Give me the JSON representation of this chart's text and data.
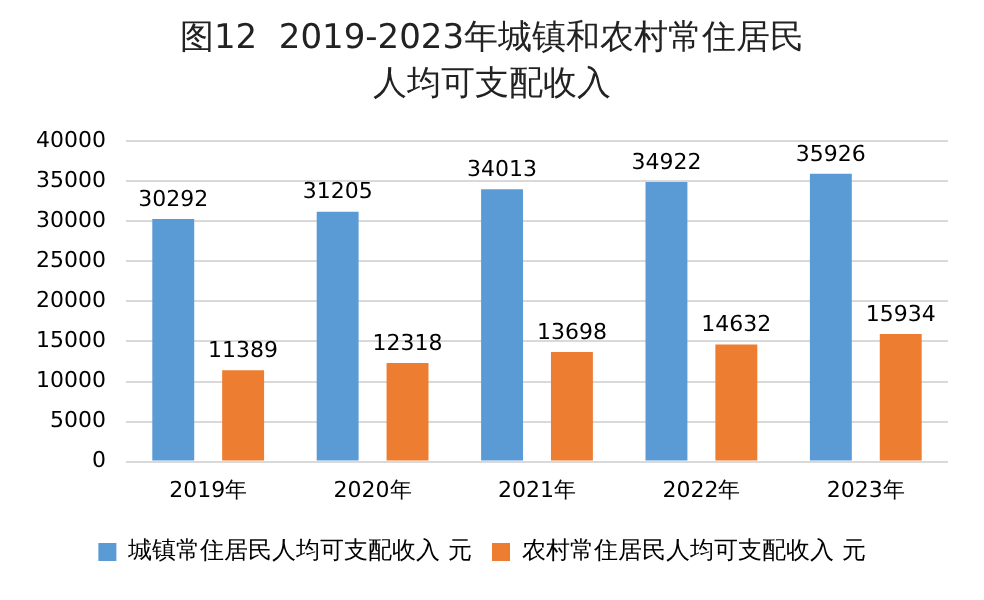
{
  "chart_data": {
    "type": "bar",
    "title": "图12  2019-2023年城镇和农村常住居民人均可支配收入",
    "categories": [
      "2019年",
      "2020年",
      "2021年",
      "2022年",
      "2023年"
    ],
    "series": [
      {
        "name": "城镇常住居民人均可支配收入 元",
        "color": "#5b9bd5",
        "values": [
          30292,
          31205,
          34013,
          34922,
          35926
        ]
      },
      {
        "name": "农村常住居民人均可支配收入 元",
        "color": "#ed7d31",
        "values": [
          11389,
          12318,
          13698,
          14632,
          15934
        ]
      }
    ],
    "ylim": [
      0,
      40000
    ],
    "yticks": [
      0,
      5000,
      10000,
      15000,
      20000,
      25000,
      30000,
      35000,
      40000
    ],
    "grid": "y",
    "legend": "bottom",
    "data_labels": true
  }
}
